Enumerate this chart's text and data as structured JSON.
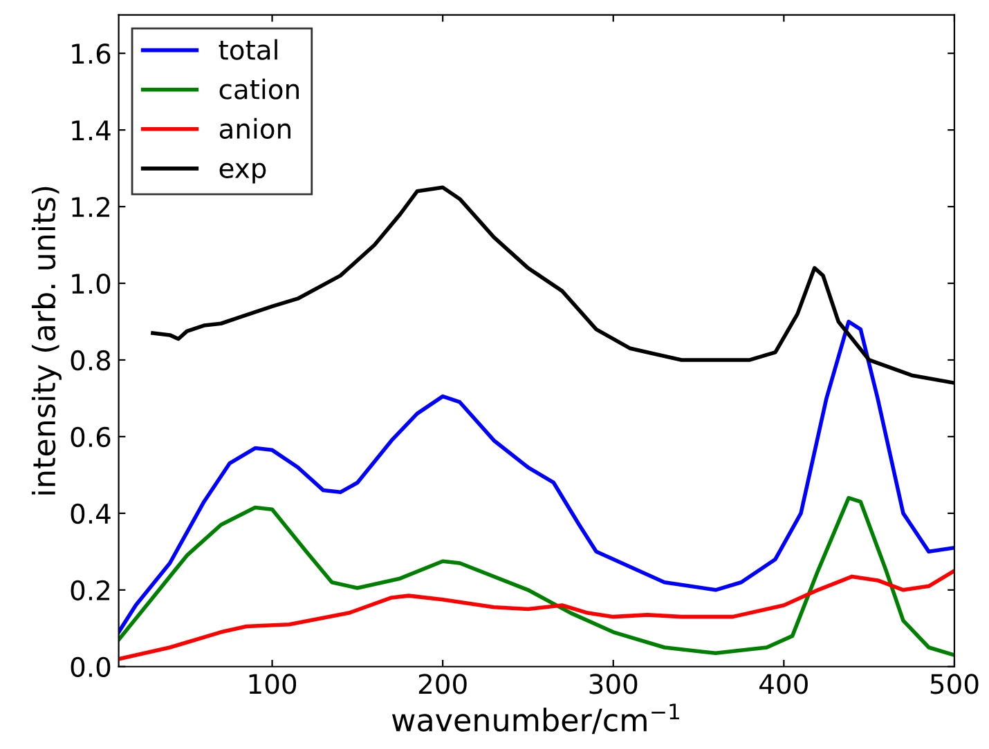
{
  "chart_data": {
    "type": "line",
    "xlabel": "wavenumber/cm$^{−1}$",
    "ylabel": "intensity (arb. units)",
    "xlim": [
      10,
      500
    ],
    "ylim": [
      0,
      1.7
    ],
    "xticks": [
      100,
      200,
      300,
      400,
      500
    ],
    "yticks": [
      {
        "value": 0,
        "label": "0.0"
      },
      {
        "value": 0.2,
        "label": "0.2"
      },
      {
        "value": 0.4,
        "label": "0.4"
      },
      {
        "value": 0.6,
        "label": "0.6"
      },
      {
        "value": 0.8,
        "label": "0.8"
      },
      {
        "value": 1.0,
        "label": "1.0"
      },
      {
        "value": 1.2,
        "label": "1.2"
      },
      {
        "value": 1.4,
        "label": "1.4"
      },
      {
        "value": 1.6,
        "label": "1.6"
      }
    ],
    "legend": "top left",
    "grid": false,
    "marker": "none",
    "line_style": "solid",
    "series": [
      {
        "name": "total",
        "color": "#0000ff",
        "x": [
          10,
          20,
          40,
          60,
          75,
          90,
          100,
          115,
          130,
          140,
          150,
          170,
          185,
          200,
          210,
          230,
          250,
          265,
          280,
          290,
          310,
          330,
          360,
          375,
          395,
          410,
          425,
          438,
          445,
          455,
          470,
          485,
          500
        ],
        "values": [
          0.09,
          0.16,
          0.27,
          0.43,
          0.53,
          0.57,
          0.565,
          0.52,
          0.46,
          0.455,
          0.48,
          0.59,
          0.66,
          0.705,
          0.69,
          0.59,
          0.52,
          0.48,
          0.37,
          0.3,
          0.26,
          0.22,
          0.2,
          0.22,
          0.28,
          0.4,
          0.7,
          0.9,
          0.88,
          0.7,
          0.4,
          0.3,
          0.31
        ]
      },
      {
        "name": "cation",
        "color": "#008000",
        "x": [
          10,
          30,
          50,
          70,
          90,
          100,
          120,
          135,
          150,
          175,
          200,
          210,
          250,
          275,
          300,
          330,
          360,
          390,
          405,
          420,
          438,
          445,
          460,
          470,
          485,
          500
        ],
        "values": [
          0.07,
          0.18,
          0.29,
          0.37,
          0.415,
          0.41,
          0.3,
          0.22,
          0.205,
          0.23,
          0.275,
          0.27,
          0.2,
          0.14,
          0.09,
          0.05,
          0.035,
          0.05,
          0.08,
          0.25,
          0.44,
          0.43,
          0.25,
          0.12,
          0.05,
          0.03
        ]
      },
      {
        "name": "anion",
        "color": "#ff0000",
        "x": [
          10,
          40,
          70,
          85,
          110,
          145,
          170,
          180,
          200,
          230,
          250,
          270,
          285,
          300,
          320,
          340,
          370,
          400,
          420,
          440,
          455,
          470,
          485,
          500
        ],
        "values": [
          0.02,
          0.05,
          0.09,
          0.105,
          0.11,
          0.14,
          0.18,
          0.185,
          0.175,
          0.155,
          0.15,
          0.16,
          0.14,
          0.13,
          0.135,
          0.13,
          0.13,
          0.16,
          0.2,
          0.235,
          0.225,
          0.2,
          0.21,
          0.25
        ]
      },
      {
        "name": "exp",
        "color": "#000000",
        "x": [
          30,
          40,
          45,
          50,
          60,
          70,
          80,
          100,
          115,
          140,
          160,
          175,
          185,
          200,
          210,
          230,
          250,
          270,
          290,
          310,
          340,
          380,
          395,
          408,
          418,
          423,
          432,
          450,
          475,
          500
        ],
        "values": [
          0.87,
          0.865,
          0.855,
          0.875,
          0.89,
          0.895,
          0.91,
          0.94,
          0.96,
          1.02,
          1.1,
          1.18,
          1.24,
          1.25,
          1.22,
          1.12,
          1.04,
          0.98,
          0.88,
          0.83,
          0.8,
          0.8,
          0.82,
          0.92,
          1.04,
          1.02,
          0.9,
          0.8,
          0.76,
          0.74
        ]
      }
    ]
  }
}
